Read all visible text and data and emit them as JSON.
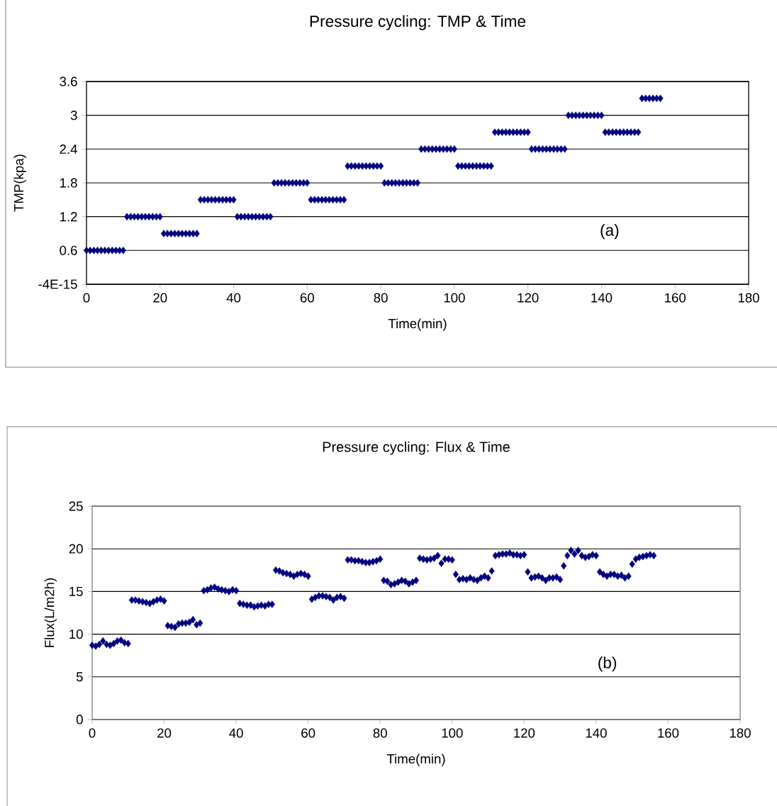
{
  "chart_data": [
    {
      "type": "scatter",
      "title": "Pressure cycling: TMP & Time",
      "xlabel": "Time(min)",
      "ylabel": "TMP(kpa)",
      "annotations": [
        "(a)"
      ],
      "color": "#000080",
      "marker": "diamond",
      "grid": "y",
      "xlim": [
        0,
        180
      ],
      "xticks": [
        0,
        20,
        40,
        60,
        80,
        100,
        120,
        140,
        160,
        180
      ],
      "ylim": [
        0,
        3.6
      ],
      "yticks": [
        {
          "value": 0,
          "label": "-4E-15"
        },
        0.6,
        1.2,
        1.8,
        2.4,
        3,
        3.6
      ],
      "x": [
        0,
        1,
        2,
        3,
        4,
        5,
        6,
        7,
        8,
        9,
        10,
        11,
        12,
        13,
        14,
        15,
        16,
        17,
        18,
        19,
        20,
        21,
        22,
        23,
        24,
        25,
        26,
        27,
        28,
        29,
        30,
        31,
        32,
        33,
        34,
        35,
        36,
        37,
        38,
        39,
        40,
        41,
        42,
        43,
        44,
        45,
        46,
        47,
        48,
        49,
        50,
        51,
        52,
        53,
        54,
        55,
        56,
        57,
        58,
        59,
        60,
        61,
        62,
        63,
        64,
        65,
        66,
        67,
        68,
        69,
        70,
        71,
        72,
        73,
        74,
        75,
        76,
        77,
        78,
        79,
        80,
        81,
        82,
        83,
        84,
        85,
        86,
        87,
        88,
        89,
        90,
        91,
        92,
        93,
        94,
        95,
        96,
        97,
        98,
        99,
        100,
        101,
        102,
        103,
        104,
        105,
        106,
        107,
        108,
        109,
        110,
        111,
        112,
        113,
        114,
        115,
        116,
        117,
        118,
        119,
        120,
        121,
        122,
        123,
        124,
        125,
        126,
        127,
        128,
        129,
        130,
        131,
        132,
        133,
        134,
        135,
        136,
        137,
        138,
        139,
        140,
        141,
        142,
        143,
        144,
        145,
        146,
        147,
        148,
        149,
        150,
        151,
        152,
        153,
        154,
        155,
        156
      ],
      "values": [
        0.6,
        0.6,
        0.6,
        0.6,
        0.6,
        0.6,
        0.6,
        0.6,
        0.6,
        0.6,
        0.6,
        1.2,
        1.2,
        1.2,
        1.2,
        1.2,
        1.2,
        1.2,
        1.2,
        1.2,
        1.2,
        0.9,
        0.9,
        0.9,
        0.9,
        0.9,
        0.9,
        0.9,
        0.9,
        0.9,
        0.9,
        1.5,
        1.5,
        1.5,
        1.5,
        1.5,
        1.5,
        1.5,
        1.5,
        1.5,
        1.5,
        1.2,
        1.2,
        1.2,
        1.2,
        1.2,
        1.2,
        1.2,
        1.2,
        1.2,
        1.2,
        1.8,
        1.8,
        1.8,
        1.8,
        1.8,
        1.8,
        1.8,
        1.8,
        1.8,
        1.8,
        1.5,
        1.5,
        1.5,
        1.5,
        1.5,
        1.5,
        1.5,
        1.5,
        1.5,
        1.5,
        2.1,
        2.1,
        2.1,
        2.1,
        2.1,
        2.1,
        2.1,
        2.1,
        2.1,
        2.1,
        1.8,
        1.8,
        1.8,
        1.8,
        1.8,
        1.8,
        1.8,
        1.8,
        1.8,
        1.8,
        2.4,
        2.4,
        2.4,
        2.4,
        2.4,
        2.4,
        2.4,
        2.4,
        2.4,
        2.4,
        2.1,
        2.1,
        2.1,
        2.1,
        2.1,
        2.1,
        2.1,
        2.1,
        2.1,
        2.1,
        2.7,
        2.7,
        2.7,
        2.7,
        2.7,
        2.7,
        2.7,
        2.7,
        2.7,
        2.7,
        2.4,
        2.4,
        2.4,
        2.4,
        2.4,
        2.4,
        2.4,
        2.4,
        2.4,
        2.4,
        3,
        3,
        3,
        3,
        3,
        3,
        3,
        3,
        3,
        3,
        2.7,
        2.7,
        2.7,
        2.7,
        2.7,
        2.7,
        2.7,
        2.7,
        2.7,
        2.7,
        3.3,
        3.3,
        3.3,
        3.3,
        3.3,
        3.3
      ]
    },
    {
      "type": "scatter",
      "title": "Pressure cycling: Flux & Time",
      "xlabel": "Time(min)",
      "ylabel": "Flux(L/m2h)",
      "annotations": [
        "(b)"
      ],
      "color": "#000080",
      "marker": "diamond",
      "grid": "y",
      "xlim": [
        0,
        180
      ],
      "xticks": [
        0,
        20,
        40,
        60,
        80,
        100,
        120,
        140,
        160,
        180
      ],
      "ylim": [
        0,
        25
      ],
      "yticks": [
        0,
        5,
        10,
        15,
        20,
        25
      ],
      "x": [
        0,
        1,
        2,
        3,
        4,
        5,
        6,
        7,
        8,
        9,
        10,
        11,
        12,
        13,
        14,
        15,
        16,
        17,
        18,
        19,
        20,
        21,
        22,
        23,
        24,
        25,
        26,
        27,
        28,
        29,
        30,
        31,
        32,
        33,
        34,
        35,
        36,
        37,
        38,
        39,
        40,
        41,
        42,
        43,
        44,
        45,
        46,
        47,
        48,
        49,
        50,
        51,
        52,
        53,
        54,
        55,
        56,
        57,
        58,
        59,
        60,
        61,
        62,
        63,
        64,
        65,
        66,
        67,
        68,
        69,
        70,
        71,
        72,
        73,
        74,
        75,
        76,
        77,
        78,
        79,
        80,
        81,
        82,
        83,
        84,
        85,
        86,
        87,
        88,
        89,
        90,
        91,
        92,
        93,
        94,
        95,
        96,
        97,
        98,
        99,
        100,
        101,
        102,
        103,
        104,
        105,
        106,
        107,
        108,
        109,
        110,
        111,
        112,
        113,
        114,
        115,
        116,
        117,
        118,
        119,
        120,
        121,
        122,
        123,
        124,
        125,
        126,
        127,
        128,
        129,
        130,
        131,
        132,
        133,
        134,
        135,
        136,
        137,
        138,
        139,
        140,
        141,
        142,
        143,
        144,
        145,
        146,
        147,
        148,
        149,
        150,
        151,
        152,
        153,
        154,
        155,
        156
      ],
      "values": [
        8.7,
        8.6,
        8.8,
        9.2,
        8.8,
        8.7,
        8.9,
        9.2,
        9.3,
        9.0,
        8.9,
        14.0,
        14.0,
        13.9,
        13.8,
        13.7,
        13.6,
        13.8,
        14.0,
        14.1,
        13.9,
        11.0,
        10.9,
        10.8,
        11.2,
        11.3,
        11.3,
        11.4,
        11.7,
        11.1,
        11.3,
        15.1,
        15.2,
        15.4,
        15.5,
        15.3,
        15.2,
        15.1,
        15.0,
        15.2,
        15.1,
        13.6,
        13.5,
        13.4,
        13.4,
        13.2,
        13.3,
        13.4,
        13.3,
        13.5,
        13.5,
        17.5,
        17.4,
        17.2,
        17.1,
        17.0,
        16.8,
        17.0,
        17.1,
        17.0,
        16.8,
        14.1,
        14.3,
        14.5,
        14.5,
        14.4,
        14.3,
        14.0,
        14.3,
        14.4,
        14.2,
        18.7,
        18.7,
        18.6,
        18.6,
        18.5,
        18.4,
        18.4,
        18.5,
        18.6,
        18.8,
        16.3,
        16.2,
        15.8,
        15.9,
        16.1,
        16.3,
        16.2,
        15.9,
        16.1,
        16.3,
        18.9,
        18.8,
        18.7,
        18.8,
        18.9,
        19.2,
        18.3,
        18.8,
        18.8,
        18.7,
        17.0,
        16.4,
        16.5,
        16.4,
        16.6,
        16.4,
        16.3,
        16.6,
        16.8,
        16.6,
        17.4,
        19.2,
        19.3,
        19.4,
        19.4,
        19.5,
        19.3,
        19.3,
        19.2,
        19.3,
        17.3,
        16.6,
        16.7,
        16.8,
        16.6,
        16.3,
        16.6,
        16.6,
        16.7,
        16.4,
        18.0,
        19.2,
        19.8,
        19.4,
        19.8,
        19.2,
        19.0,
        19.1,
        19.3,
        19.2,
        17.3,
        17.0,
        16.8,
        17.0,
        17.0,
        16.8,
        16.9,
        16.6,
        16.8,
        18.2,
        18.8,
        19.0,
        19.1,
        19.2,
        19.3,
        19.2
      ]
    }
  ]
}
